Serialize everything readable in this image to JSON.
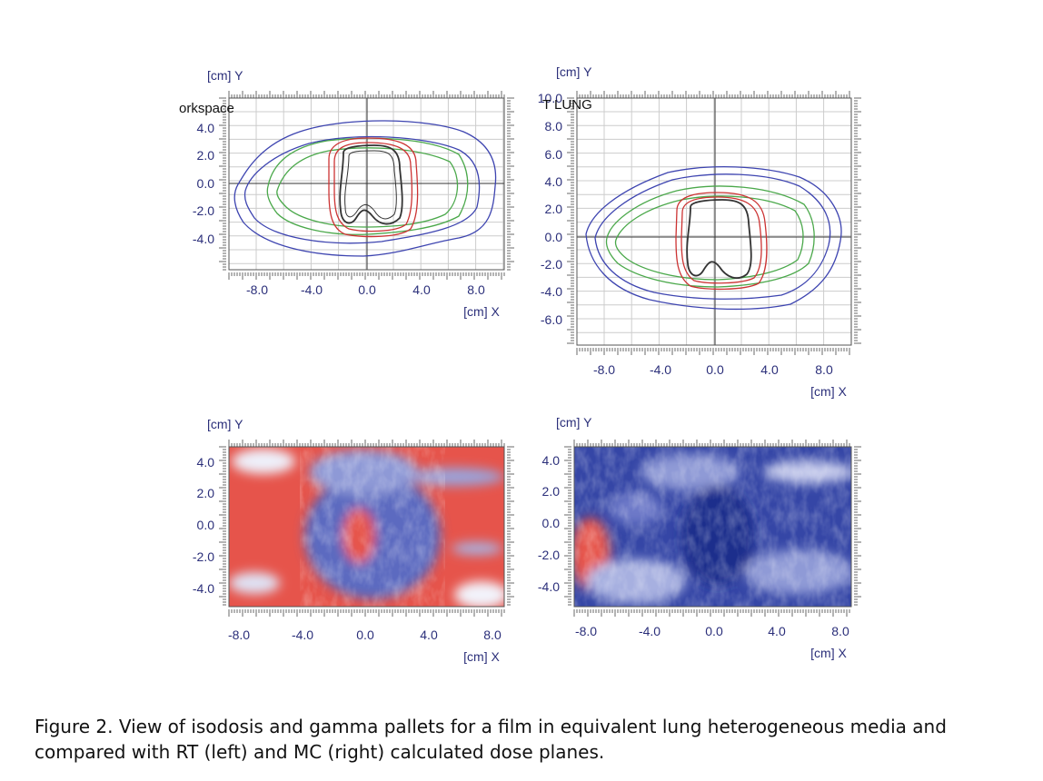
{
  "figure": {
    "panels": [
      {
        "y_label": "[cm] Y",
        "x_label": "[cm] X",
        "overlay": "orkspace",
        "yticks": [
          "4.0",
          "2.0",
          "0.0",
          "-2.0",
          "-4.0"
        ],
        "xticks": [
          "-8.0",
          "-4.0",
          "0.0",
          "4.0",
          "8.0"
        ]
      },
      {
        "y_label": "[cm] Y",
        "x_label": "[cm] X",
        "overlay": "T LUNG",
        "yticks": [
          "10.0",
          "8.0",
          "6.0",
          "4.0",
          "2.0",
          "0.0",
          "-2.0",
          "-4.0",
          "-6.0"
        ],
        "xticks": [
          "-8.0",
          "-4.0",
          "0.0",
          "4.0",
          "8.0"
        ]
      },
      {
        "y_label": "[cm] Y",
        "x_label": "[cm] X",
        "yticks": [
          "4.0",
          "2.0",
          "0.0",
          "-2.0",
          "-4.0"
        ],
        "xticks": [
          "-8.0",
          "-4.0",
          "0.0",
          "4.0",
          "8.0"
        ]
      },
      {
        "y_label": "[cm] Y",
        "x_label": "[cm] X",
        "yticks": [
          "4.0",
          "2.0",
          "0.0",
          "-2.0",
          "-4.0"
        ],
        "xticks": [
          "-8.0",
          "-4.0",
          "0.0",
          "4.0",
          "8.0"
        ]
      }
    ],
    "caption": [
      "Figure 2. View of isodosis and gamma pallets for a film in equivalent lung heterogeneous media and",
      "compared with RT (left) and MC (right) calculated dose planes."
    ]
  }
}
